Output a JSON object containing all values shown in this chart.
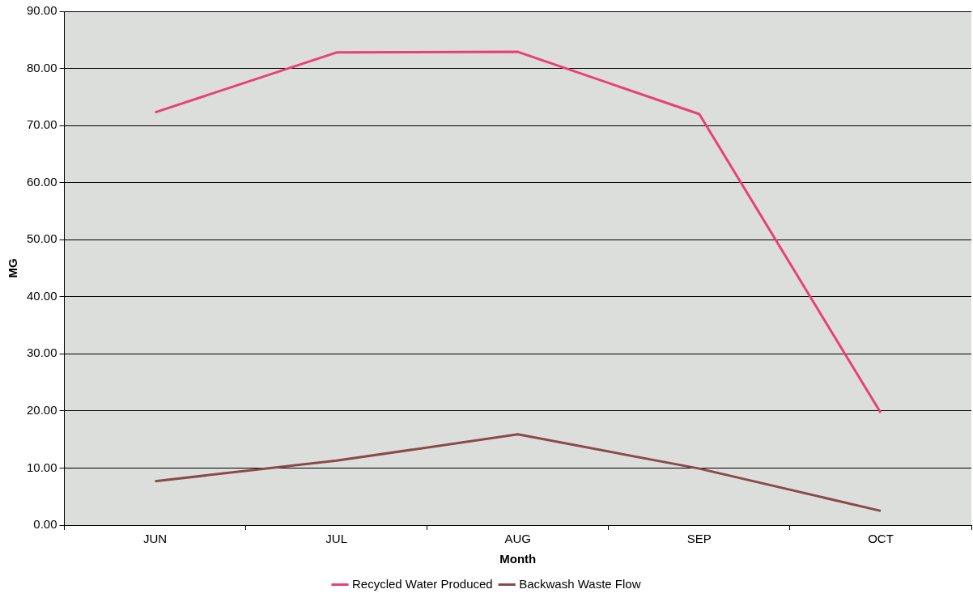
{
  "chart_data": {
    "type": "line",
    "xlabel": "Month",
    "ylabel": "MG",
    "categories": [
      "JUN",
      "JUL",
      "AUG",
      "SEP",
      "OCT"
    ],
    "series": [
      {
        "name": "Recycled Water Produced",
        "color": "#e8407a",
        "values": [
          72.3,
          82.8,
          82.9,
          72.0,
          19.7
        ]
      },
      {
        "name": "Backwash Waste Flow",
        "color": "#8b4a4a",
        "values": [
          7.7,
          11.3,
          15.9,
          9.9,
          2.5
        ]
      }
    ],
    "ylim": [
      0,
      90
    ],
    "yticks": [
      {
        "value": 0,
        "label": "0.00"
      },
      {
        "value": 10,
        "label": "10.00"
      },
      {
        "value": 20,
        "label": "20.00"
      },
      {
        "value": 30,
        "label": "30.00"
      },
      {
        "value": 40,
        "label": "40.00"
      },
      {
        "value": 50,
        "label": "50.00"
      },
      {
        "value": 60,
        "label": "60.00"
      },
      {
        "value": 70,
        "label": "70.00"
      },
      {
        "value": 80,
        "label": "80.00"
      },
      {
        "value": 90,
        "label": "90.00"
      }
    ],
    "grid": "y",
    "legend": "bottom",
    "marker": "none",
    "line_style": "solid"
  }
}
